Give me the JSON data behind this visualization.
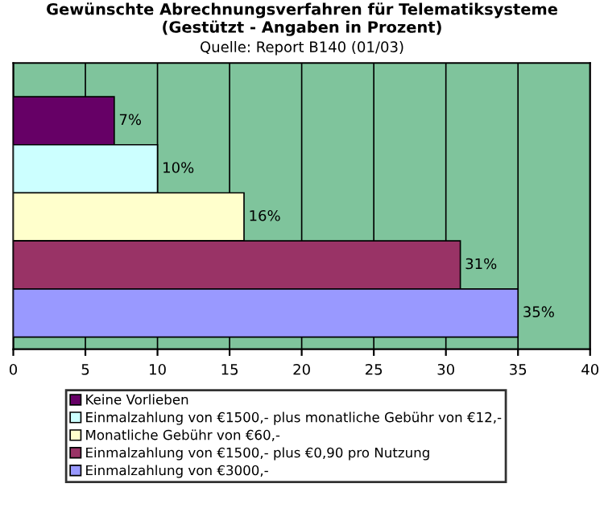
{
  "chart_data": {
    "type": "bar",
    "orientation": "horizontal",
    "title": "Gewünschte Abrechnungsverfahren für Telematiksysteme\n(Gestützt - Angaben in Prozent)",
    "subtitle": "Quelle: Report B140 (01/03)",
    "categories": [
      null,
      null,
      null,
      null,
      null
    ],
    "series": [
      {
        "name": "Keine Vorlieben",
        "color": "#660066",
        "values": [
          7,
          null,
          null,
          null,
          null
        ],
        "value_labels": [
          "7%",
          null,
          null,
          null,
          null
        ]
      },
      {
        "name": "Einmalzahlung von €1500,- plus monatliche Gebühr von €12,-",
        "color": "#ccffff",
        "values": [
          null,
          10,
          null,
          null,
          null
        ],
        "value_labels": [
          null,
          "10%",
          null,
          null,
          null
        ]
      },
      {
        "name": "Monatliche Gebühr von €60,-",
        "color": "#ffffcc",
        "values": [
          null,
          null,
          16,
          null,
          null
        ],
        "value_labels": [
          null,
          null,
          "16%",
          null,
          null
        ]
      },
      {
        "name": "Einmalzahlung von €1500,- plus €0,90 pro Nutzung",
        "color": "#993366",
        "values": [
          null,
          null,
          null,
          31,
          null
        ],
        "value_labels": [
          null,
          null,
          null,
          "31%",
          null
        ]
      },
      {
        "name": "Einmalzahlung von €3000,-",
        "color": "#9999ff",
        "values": [
          null,
          null,
          null,
          null,
          35
        ],
        "value_labels": [
          null,
          null,
          null,
          null,
          "35%"
        ]
      }
    ],
    "xlim": [
      0,
      40
    ],
    "xticks": [
      0,
      5,
      10,
      15,
      20,
      25,
      30,
      35,
      40
    ],
    "grid": "x",
    "legend": "bottom"
  }
}
